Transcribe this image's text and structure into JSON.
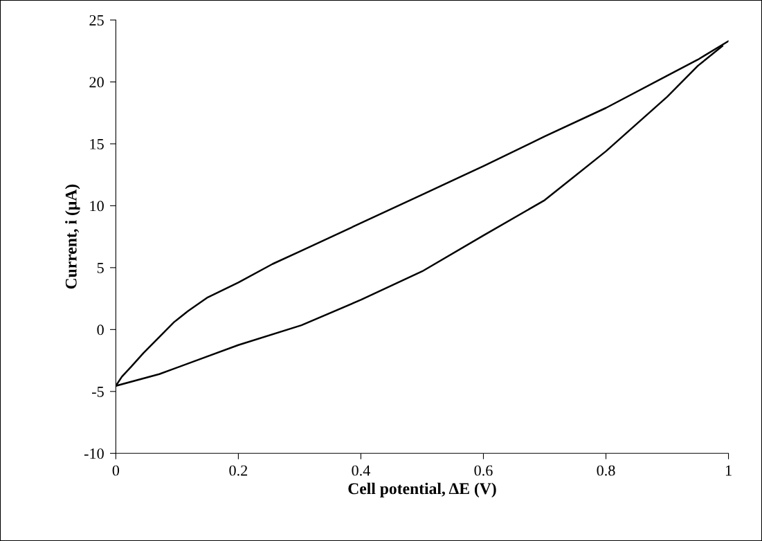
{
  "chart_data": {
    "type": "line",
    "xlabel": "Cell potential, ΔE (V)",
    "ylabel": "Current, i (μA)",
    "series": [
      {
        "color": "#000000",
        "x": [
          0,
          0.01,
          0.025,
          0.045,
          0.071,
          0.095,
          0.118,
          0.15,
          0.2,
          0.256,
          0.3,
          0.4,
          0.5,
          0.6,
          0.7,
          0.8,
          0.9,
          0.95,
          1.0
        ],
        "values": [
          -4.55,
          -3.8,
          -3.0,
          -1.9,
          -0.6,
          0.6,
          1.5,
          2.6,
          3.8,
          5.3,
          6.3,
          8.6,
          10.9,
          13.2,
          15.6,
          17.9,
          20.5,
          21.8,
          23.3
        ]
      },
      {
        "color": "#000000",
        "x": [
          0,
          0.071,
          0.2,
          0.303,
          0.4,
          0.5,
          0.6,
          0.7,
          0.8,
          0.9,
          0.95,
          0.99
        ],
        "values": [
          -4.55,
          -3.6,
          -1.25,
          0.35,
          2.4,
          4.7,
          7.6,
          10.45,
          14.4,
          18.8,
          21.3,
          22.9
        ]
      }
    ],
    "xlim": [
      0,
      1
    ],
    "ylim": [
      -10,
      25
    ],
    "xticks": [
      0,
      0.2,
      0.4,
      0.6,
      0.8,
      1
    ],
    "yticks": [
      {
        "value": -10,
        "label": "-10"
      },
      {
        "value": -5,
        "label": "-5"
      },
      0,
      5,
      10,
      15,
      20,
      25
    ],
    "grid": false,
    "legend": false,
    "marker": "none",
    "line_style": "solid"
  }
}
